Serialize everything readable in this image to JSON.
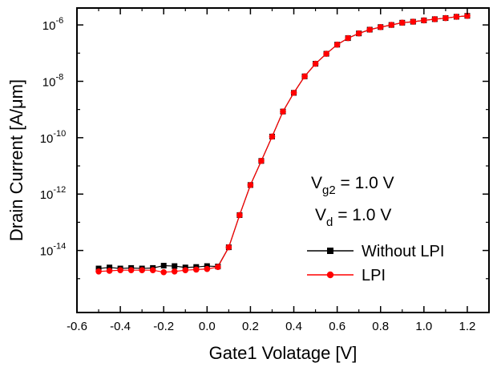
{
  "chart_data": {
    "type": "line",
    "xlabel": "Gate1 Volatage [V]",
    "ylabel": "Drain Current [A/μm]",
    "xlim": [
      -0.6,
      1.3
    ],
    "ylim_log10": [
      -16.2,
      -5.4
    ],
    "y_scale": "log",
    "x_ticks": [
      -0.6,
      -0.4,
      -0.2,
      0.0,
      0.2,
      0.4,
      0.6,
      0.8,
      1.0,
      1.2
    ],
    "x_tick_labels": [
      "-0.6",
      "-0.4",
      "-0.2",
      "0.0",
      "0.2",
      "0.4",
      "0.6",
      "0.8",
      "1.0",
      "1.2"
    ],
    "y_tick_exponents": [
      -14,
      -12,
      -10,
      -8,
      -6
    ],
    "y_tick_labels": [
      {
        "base": "10",
        "exp": "-14"
      },
      {
        "base": "10",
        "exp": "-12"
      },
      {
        "base": "10",
        "exp": "-10"
      },
      {
        "base": "10",
        "exp": "-8"
      },
      {
        "base": "10",
        "exp": "-6"
      }
    ],
    "annotations": [
      {
        "main": "V",
        "sub": "g2",
        "rest": " = 1.0 V"
      },
      {
        "main": "V",
        "sub": "d",
        "rest": " = 1.0 V"
      }
    ],
    "legend_position": "lower-right",
    "series": [
      {
        "name": "Without LPI",
        "color": "#000000",
        "marker": "square",
        "x": [
          -0.5,
          -0.45,
          -0.4,
          -0.35,
          -0.3,
          -0.25,
          -0.2,
          -0.15,
          -0.1,
          -0.05,
          0.0,
          0.05,
          0.1,
          0.15,
          0.2,
          0.25,
          0.3,
          0.35,
          0.4,
          0.45,
          0.5,
          0.55,
          0.6,
          0.65,
          0.7,
          0.75,
          0.8,
          0.85,
          0.9,
          0.95,
          1.0,
          1.05,
          1.1,
          1.15,
          1.2
        ],
        "y": [
          2.3e-15,
          2.5e-15,
          2.3e-15,
          2.4e-15,
          2.3e-15,
          2.4e-15,
          2.9e-15,
          2.8e-15,
          2.5e-15,
          2.6e-15,
          2.8e-15,
          2.7e-15,
          1.3e-14,
          1.8e-13,
          2.1e-12,
          1.5e-11,
          1.1e-10,
          8.5e-10,
          3.9e-09,
          1.5e-08,
          4.2e-08,
          9.5e-08,
          2e-07,
          3.4e-07,
          5e-07,
          6.8e-07,
          8.4e-07,
          1e-06,
          1.2e-06,
          1.3e-06,
          1.45e-06,
          1.6e-06,
          1.75e-06,
          1.95e-06,
          2.1e-06
        ]
      },
      {
        "name": "LPI",
        "color": "#ff0000",
        "marker": "circle",
        "x": [
          -0.5,
          -0.45,
          -0.4,
          -0.35,
          -0.3,
          -0.25,
          -0.2,
          -0.15,
          -0.1,
          -0.05,
          0.0,
          0.05,
          0.1,
          0.15,
          0.2,
          0.25,
          0.3,
          0.35,
          0.4,
          0.45,
          0.5,
          0.55,
          0.6,
          0.65,
          0.7,
          0.75,
          0.8,
          0.85,
          0.9,
          0.95,
          1.0,
          1.05,
          1.1,
          1.15,
          1.2
        ],
        "y": [
          1.8e-15,
          1.9e-15,
          2e-15,
          2e-15,
          2e-15,
          2e-15,
          1.7e-15,
          1.8e-15,
          2e-15,
          2.1e-15,
          2.2e-15,
          2.6e-15,
          1.3e-14,
          1.8e-13,
          2.1e-12,
          1.5e-11,
          1.1e-10,
          8.5e-10,
          3.9e-09,
          1.5e-08,
          4.2e-08,
          9.5e-08,
          2e-07,
          3.4e-07,
          5e-07,
          6.8e-07,
          8.4e-07,
          1e-06,
          1.2e-06,
          1.3e-06,
          1.45e-06,
          1.6e-06,
          1.75e-06,
          1.95e-06,
          2.1e-06
        ]
      }
    ]
  }
}
